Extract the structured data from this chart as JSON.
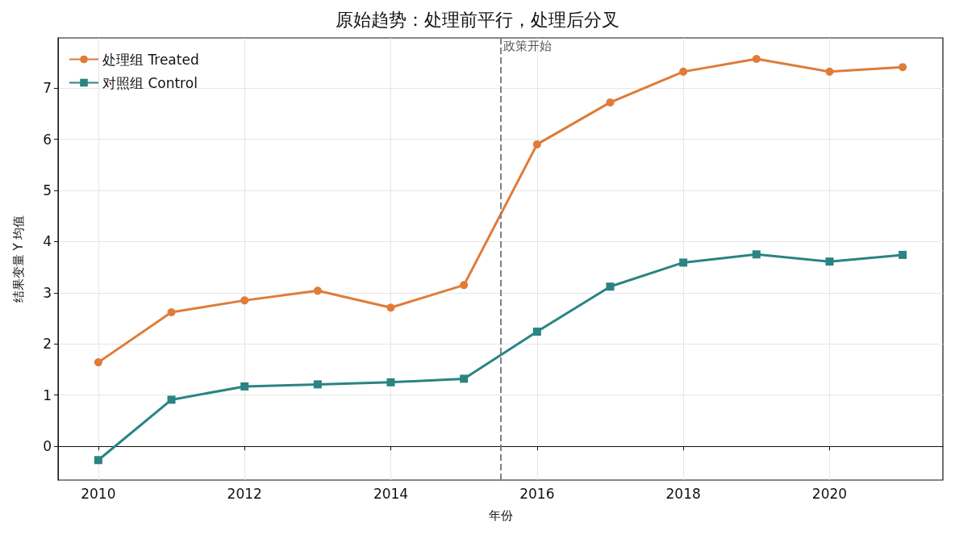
{
  "chart_data": {
    "type": "line",
    "title": "原始趋势：处理前平行，处理后分叉",
    "xlabel": "年份",
    "ylabel": "结果变量 Y 均值",
    "x": [
      2010,
      2011,
      2012,
      2013,
      2014,
      2015,
      2016,
      2017,
      2018,
      2019,
      2020,
      2021
    ],
    "series": [
      {
        "name": "处理组 Treated",
        "color": "#e07b39",
        "marker": "circle",
        "values": [
          1.64,
          2.62,
          2.85,
          3.04,
          2.71,
          3.15,
          5.9,
          6.72,
          7.32,
          7.57,
          7.32,
          7.41
        ]
      },
      {
        "name": "对照组 Control",
        "color": "#2a8482",
        "marker": "square",
        "values": [
          -0.27,
          0.91,
          1.17,
          1.21,
          1.25,
          1.32,
          2.24,
          3.12,
          3.59,
          3.75,
          3.61,
          3.74
        ]
      }
    ],
    "xlim": [
      2009.45,
      2021.55
    ],
    "xticks": [
      2010,
      2012,
      2014,
      2016,
      2018,
      2020
    ],
    "ylim": [
      -0.66,
      7.98
    ],
    "yticks": [
      0,
      1,
      2,
      3,
      4,
      5,
      6,
      7
    ],
    "ref_lines": [
      {
        "axis": "x",
        "value": 2015.5,
        "label": "政策开始",
        "color": "#808080",
        "line_style": "dashed"
      }
    ],
    "grid": true,
    "legend": "top left",
    "line_style": "solid"
  }
}
